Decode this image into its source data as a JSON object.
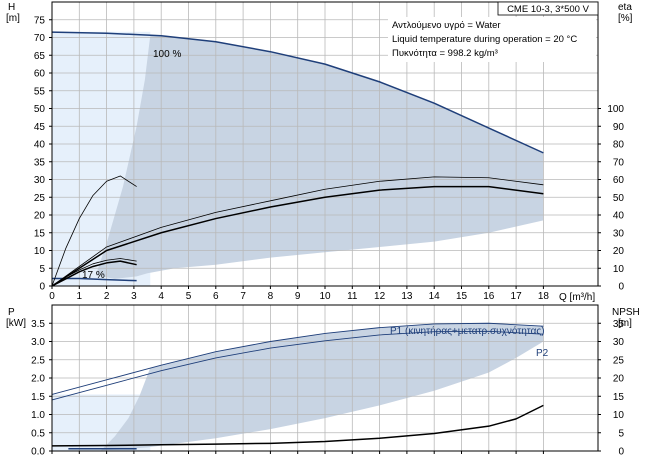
{
  "model_label": "CME 10-3, 3*500 V",
  "info_lines": [
    "Αντλούμενο υγρό = Water",
    "Liquid temperature during operation = 20 °C",
    "Πυκνότητα = 998.2 kg/m³"
  ],
  "colors": {
    "accent": "#1f3f7a",
    "region": "#c8d4e3",
    "light_region": "#e6f0fb",
    "grid": "#b9b9b9"
  },
  "chart_data": [
    {
      "type": "line",
      "panel": "head-efficiency",
      "ylabel_left": "H",
      "yunit_left": "[m]",
      "ylabel_right": "eta",
      "yunit_right": "[%]",
      "xlabel": "Q [m³/h]",
      "xlim": [
        0,
        20
      ],
      "ylim_left": [
        0,
        80
      ],
      "ylim_right": [
        0,
        160
      ],
      "x_ticks": [
        0,
        1,
        2,
        3,
        4,
        5,
        6,
        7,
        8,
        9,
        10,
        11,
        12,
        13,
        14,
        15,
        16,
        17,
        18
      ],
      "y_ticks_left": [
        0,
        5,
        10,
        15,
        20,
        25,
        30,
        35,
        40,
        45,
        50,
        55,
        60,
        65,
        70,
        75
      ],
      "y_ticks_right": [
        0,
        10,
        20,
        30,
        40,
        50,
        60,
        70,
        80,
        90,
        100
      ],
      "grid": true,
      "annotations": [
        "100 %",
        "17 %"
      ],
      "series": [
        {
          "name": "100 %",
          "color": "#1f3f7a",
          "width": 1.5,
          "axis": "left",
          "x": [
            0,
            2,
            4,
            6,
            8,
            10,
            12,
            14,
            16,
            18
          ],
          "y": [
            71.5,
            71.2,
            70.5,
            68.8,
            66,
            62.5,
            57.5,
            51.5,
            44.5,
            37.5
          ]
        },
        {
          "name": "17 %",
          "color": "#1f3f7a",
          "width": 1.5,
          "axis": "left",
          "x": [
            0,
            1,
            2,
            3.1
          ],
          "y": [
            2.1,
            2.1,
            1.8,
            1.5
          ]
        },
        {
          "color": "#000",
          "width": 1.5,
          "axis": "right",
          "x": [
            0,
            2,
            4,
            6,
            8,
            10,
            12,
            14,
            16,
            18
          ],
          "y": [
            0,
            20,
            30,
            38,
            44.5,
            50,
            54,
            56,
            56,
            52
          ]
        },
        {
          "color": "#000",
          "width": 0.8,
          "axis": "right",
          "x": [
            0,
            2,
            4,
            6,
            8,
            10,
            12,
            14,
            16,
            18
          ],
          "y": [
            0,
            22,
            33,
            41.5,
            48,
            54.5,
            59,
            61.5,
            61,
            57
          ]
        },
        {
          "color": "#000",
          "width": 0.8,
          "axis": "right",
          "x": [
            0,
            0.5,
            1,
            1.5,
            2,
            2.5,
            3.1
          ],
          "y": [
            0,
            21,
            38,
            51,
            59,
            62,
            56
          ]
        },
        {
          "color": "#000",
          "width": 1.5,
          "axis": "right",
          "x": [
            0,
            0.5,
            1,
            1.5,
            2,
            2.5,
            3.1
          ],
          "y": [
            0,
            4,
            8,
            11,
            13,
            14,
            12
          ]
        },
        {
          "color": "#000",
          "width": 0.8,
          "axis": "right",
          "x": [
            0,
            0.5,
            1,
            1.5,
            2,
            2.5,
            3.1
          ],
          "y": [
            0,
            5,
            9,
            12.5,
            14.5,
            15.5,
            14
          ]
        }
      ]
    },
    {
      "type": "line",
      "panel": "power-npsh",
      "ylabel_left": "P",
      "yunit_left": "[kW]",
      "ylabel_right": "NPSH",
      "yunit_right": "[m]",
      "xlim": [
        0,
        20
      ],
      "ylim_left": [
        0,
        4
      ],
      "ylim_right": [
        0,
        40
      ],
      "y_ticks_left": [
        0,
        0.5,
        1.0,
        1.5,
        2.0,
        2.5,
        3.0,
        3.5
      ],
      "y_ticks_right": [
        0,
        5,
        10,
        15,
        20,
        25,
        30,
        35
      ],
      "grid": true,
      "series": [
        {
          "name": "P1 (κινητήρας+μετατρ.συχνότητας)",
          "color": "#1f3f7a",
          "width": 0.9,
          "axis": "left",
          "x": [
            0,
            2,
            4,
            6,
            8,
            10,
            12,
            14,
            16,
            18
          ],
          "y": [
            1.55,
            1.95,
            2.35,
            2.72,
            3.0,
            3.22,
            3.38,
            3.48,
            3.5,
            3.42
          ]
        },
        {
          "name": "P2",
          "color": "#1f3f7a",
          "width": 0.9,
          "axis": "left",
          "x": [
            0,
            2,
            4,
            6,
            8,
            10,
            12,
            14,
            16,
            18
          ],
          "y": [
            1.4,
            1.8,
            2.2,
            2.55,
            2.82,
            3.02,
            3.18,
            3.27,
            3.28,
            3.2
          ]
        },
        {
          "name": "NPSH",
          "color": "#000",
          "width": 1.5,
          "axis": "right",
          "x": [
            0,
            2,
            4,
            6,
            8,
            10,
            12,
            14,
            16,
            17,
            18
          ],
          "y": [
            1.4,
            1.5,
            1.7,
            1.9,
            2.1,
            2.6,
            3.5,
            4.8,
            6.8,
            8.8,
            12.5
          ]
        },
        {
          "color": "#1f3f7a",
          "width": 1.5,
          "axis": "left",
          "x": [
            0.6,
            3.1
          ],
          "y": [
            0.06,
            0.06
          ]
        }
      ]
    }
  ]
}
